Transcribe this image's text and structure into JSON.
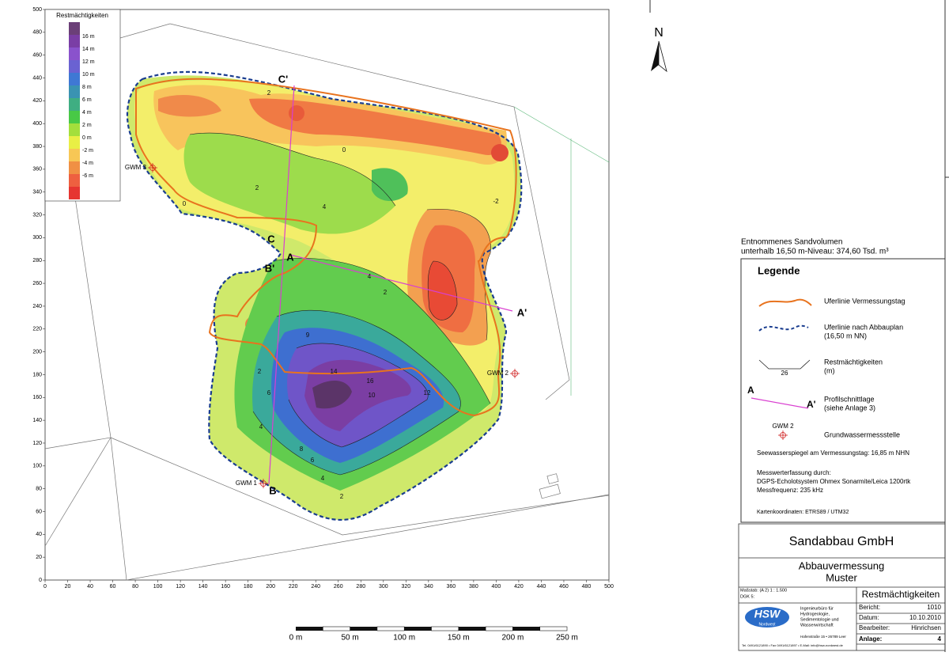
{
  "map": {
    "xticks": [
      0,
      20,
      40,
      60,
      80,
      100,
      120,
      140,
      160,
      180,
      200,
      220,
      240,
      260,
      280,
      300,
      320,
      340,
      360,
      380,
      400,
      420,
      440,
      460,
      480,
      500
    ],
    "yticks": [
      0,
      20,
      40,
      60,
      80,
      100,
      120,
      140,
      160,
      180,
      200,
      220,
      240,
      260,
      280,
      300,
      320,
      340,
      360,
      380,
      400,
      420,
      440,
      460,
      480,
      500
    ],
    "colorbar": {
      "title": "Restmächtigkeiten",
      "labels": [
        "16 m",
        "14 m",
        "12 m",
        "10 m",
        "8 m",
        "6 m",
        "4 m",
        "2 m",
        "0 m",
        "-2 m",
        "-4 m",
        "-6 m"
      ]
    },
    "profile_labels": [
      "C'",
      "C",
      "A",
      "B'",
      "A'",
      "B"
    ],
    "wells": [
      "GWM 1",
      "GWM 2",
      "GWM 3"
    ],
    "contour_labels": [
      "2",
      "0",
      "-2",
      "2",
      "0",
      "4",
      "2",
      "12",
      "14",
      "16",
      "10",
      "8",
      "6",
      "4",
      "2",
      "9",
      "6",
      "4",
      "2",
      "4"
    ],
    "north": "N"
  },
  "volume": {
    "line1": "Entnommenes Sandvolumen",
    "line2": "unterhalb 16,50 m-Niveau: 374,60 Tsd. m³"
  },
  "legend": {
    "title": "Legende",
    "items": [
      [
        "Uferlinie Vermessungstag"
      ],
      [
        "Uferlinie nach Abbauplan",
        "(16,50 m NN)"
      ],
      [
        "Restmächtigkeiten",
        "(m)"
      ],
      [
        "Profilschnittlage",
        "(siehe Anlage 3)"
      ],
      [
        "Grundwassermessstelle"
      ]
    ],
    "sample_number": "26",
    "profile_a": "A",
    "profile_a2": "A'",
    "well_sample": "GWM 2",
    "water_level": "Seewasserspiegel am Vermessungstag: 16,85 m NHN",
    "survey": [
      "Messwerterfassung durch:",
      "DGPS-Echolotsystem Ohmex Sonarmite/Leica 1200rtk",
      "Messfrequenz: 235 kHz"
    ],
    "coords": "Kartenkoordinaten: ETRS89 / UTM32"
  },
  "title_block": {
    "company": "Sandabbau GmbH",
    "project": [
      "Abbauvermessung",
      "Muster"
    ],
    "scale": "Maßstab:   (A 2)  1 : 1.500",
    "dgk": "DGK 5:",
    "drawing": "Restmächtigkeiten",
    "logo": "HSW",
    "logo_sub": "Nordwest",
    "firm": [
      "Ingenieurbüro für",
      "Hydrogeologie,",
      "Sedimentologie und",
      "Wasserwirtschaft"
    ],
    "address": "Hafenstraße 15 • 26789 Leer",
    "contact": "Tel. 0491/6121890 • Fax 0491/6121897 • E-Mail: info@hsw-nordwest.de",
    "fields": [
      [
        "Bericht:",
        "1010"
      ],
      [
        "Datum:",
        "10.10.2010"
      ],
      [
        "Bearbeiter:",
        "Hinrichsen"
      ],
      [
        "Anlage:",
        "4"
      ]
    ]
  },
  "scale_bar": [
    "0 m",
    "50 m",
    "100 m",
    "150 m",
    "200 m",
    "250 m"
  ]
}
